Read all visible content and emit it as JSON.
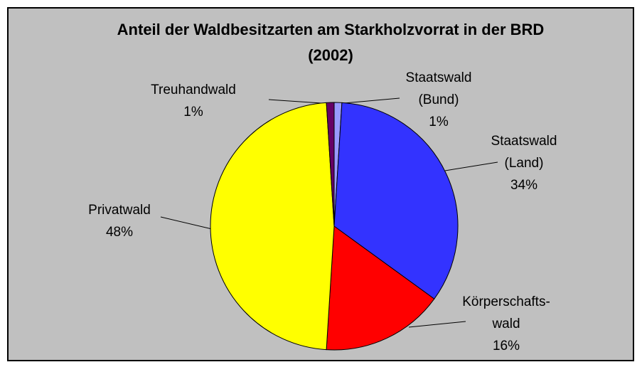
{
  "chart_data": {
    "type": "pie",
    "title": "Anteil der Waldbesitzarten am Starkholzvorrat in der BRD (2002)",
    "categories": [
      "Staatswald (Bund)",
      "Staatswald (Land)",
      "Körperschafts-wald",
      "Privatwald",
      "Treuhandwald"
    ],
    "values": [
      1,
      34,
      16,
      48,
      1
    ],
    "value_labels": [
      "1%",
      "34%",
      "16%",
      "48%",
      "1%"
    ],
    "colors": [
      "#9999ff",
      "#3333ff",
      "#ff0000",
      "#ffff00",
      "#660066"
    ]
  }
}
